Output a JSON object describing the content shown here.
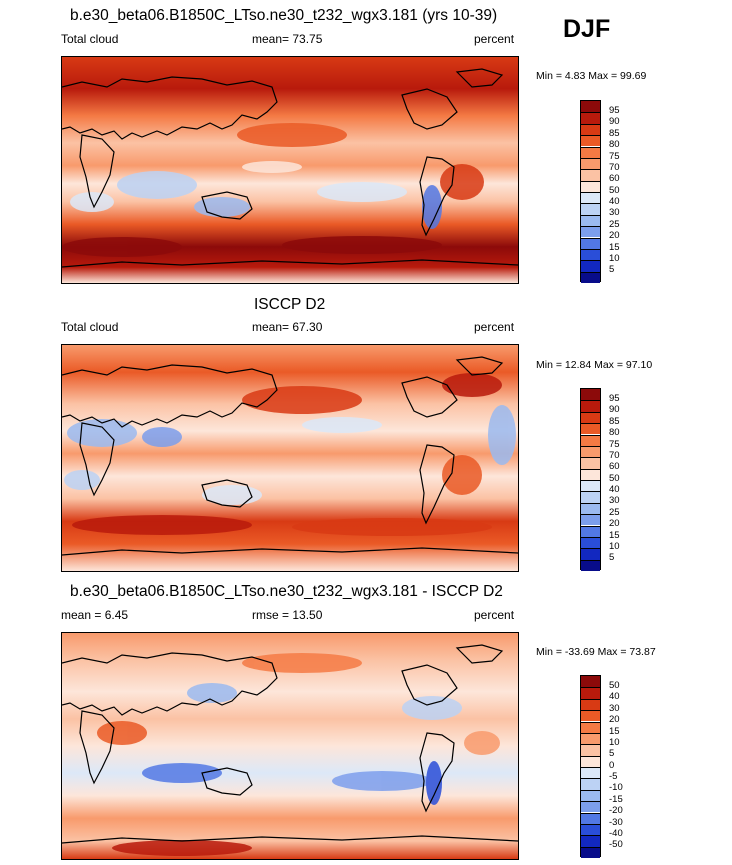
{
  "season": "DJF",
  "panels": [
    {
      "title": "b.e30_beta06.B1850C_LTso.ne30_t232_wgx3.181 (yrs 10-39)",
      "left_label": "Total cloud",
      "center_label": "mean=  73.75",
      "right_label": "percent",
      "minmax": "Min =   4.83 Max =  99.69",
      "colorbar": {
        "levels": [
          "95",
          "90",
          "85",
          "80",
          "75",
          "70",
          "60",
          "50",
          "40",
          "30",
          "25",
          "20",
          "15",
          "10",
          "5"
        ],
        "colors": [
          "#8c0a0a",
          "#b81a0c",
          "#d83a14",
          "#ea5a26",
          "#f47a44",
          "#f89a6c",
          "#fbc2a4",
          "#fde6da",
          "#dce8f8",
          "#bcd2f4",
          "#9bbaf0",
          "#7c9eec",
          "#5278e4",
          "#2a4ed8",
          "#1228c0",
          "#080c8a"
        ]
      }
    },
    {
      "title": "ISCCP D2",
      "left_label": "Total cloud",
      "center_label": "mean=  67.30",
      "right_label": "percent",
      "minmax": "Min =  12.84 Max =  97.10",
      "colorbar": {
        "levels": [
          "95",
          "90",
          "85",
          "80",
          "75",
          "70",
          "60",
          "50",
          "40",
          "30",
          "25",
          "20",
          "15",
          "10",
          "5"
        ],
        "colors": [
          "#8c0a0a",
          "#b81a0c",
          "#d83a14",
          "#ea5a26",
          "#f47a44",
          "#f89a6c",
          "#fbc2a4",
          "#fde6da",
          "#dce8f8",
          "#bcd2f4",
          "#9bbaf0",
          "#7c9eec",
          "#5278e4",
          "#2a4ed8",
          "#1228c0",
          "#080c8a"
        ]
      }
    },
    {
      "title": "b.e30_beta06.B1850C_LTso.ne30_t232_wgx3.181 - ISCCP D2",
      "left_label": "mean =   6.45",
      "center_label": "rmse =  13.50",
      "right_label": "percent",
      "minmax": "Min = -33.69 Max =  73.87",
      "colorbar": {
        "levels": [
          "50",
          "40",
          "30",
          "20",
          "15",
          "10",
          "5",
          "0",
          "-5",
          "-10",
          "-15",
          "-20",
          "-30",
          "-40",
          "-50"
        ],
        "colors": [
          "#8c0a0a",
          "#b81a0c",
          "#d83a14",
          "#ea5a26",
          "#f47a44",
          "#f89a6c",
          "#fbc2a4",
          "#fde6da",
          "#dce8f8",
          "#bcd2f4",
          "#9bbaf0",
          "#7c9eec",
          "#5278e4",
          "#2a4ed8",
          "#1228c0",
          "#080c8a"
        ]
      }
    }
  ]
}
